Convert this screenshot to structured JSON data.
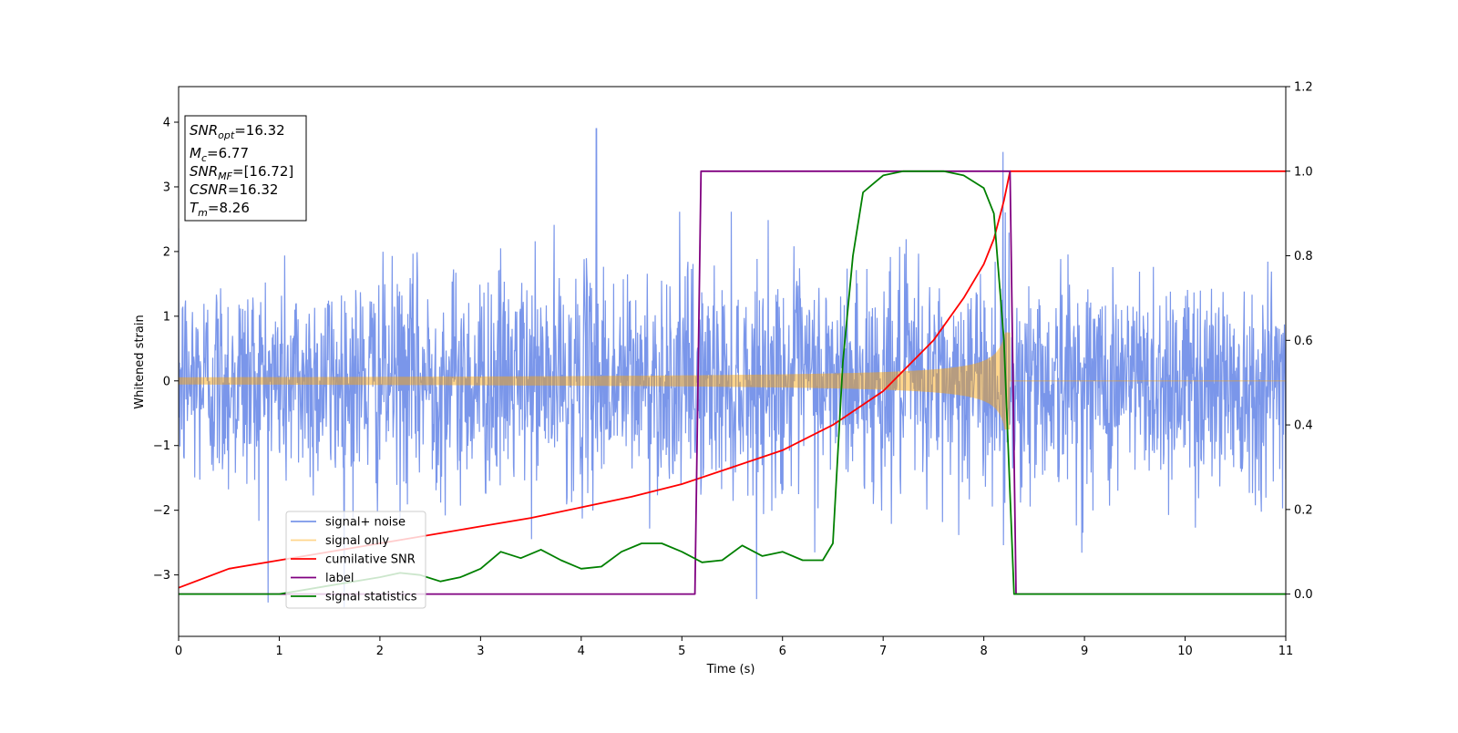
{
  "chart_data": {
    "type": "line",
    "xlabel": "Time (s)",
    "ylabel": "Whitened strain",
    "xlim": [
      0,
      11
    ],
    "ylim": [
      -3.95,
      4.55
    ],
    "y2lim": [
      -0.1,
      1.2
    ],
    "xticks": [
      "0",
      "1",
      "2",
      "3",
      "4",
      "5",
      "6",
      "7",
      "8",
      "9",
      "10",
      "11"
    ],
    "yticks": [
      "−3",
      "−2",
      "−1",
      "0",
      "1",
      "2",
      "3",
      "4"
    ],
    "y2ticks": [
      "0.0",
      "0.2",
      "0.4",
      "0.6",
      "0.8",
      "1.0",
      "1.2"
    ],
    "grid": false,
    "legend_position": "lower-left",
    "annotation": {
      "lines": [
        {
          "label": "SNR",
          "sub": "opt",
          "value": "=16.32"
        },
        {
          "label": "M",
          "sub": "c",
          "value": "=6.77"
        },
        {
          "label": "SNR",
          "sub": "MF",
          "value": "=[16.72]"
        },
        {
          "label": "CSNR",
          "sub": "",
          "value": "=16.32"
        },
        {
          "label": "T",
          "sub": "m",
          "value": "=8.26"
        }
      ]
    },
    "series": [
      {
        "name": "signal+ noise",
        "color": "#4169e1",
        "axis": "left",
        "kind": "noise",
        "std": 0.85,
        "duration_s": 11,
        "peak_at": 4.15,
        "peak_value": 4.18
      },
      {
        "name": "signal only",
        "color": "#ffa500",
        "axis": "left",
        "kind": "chirp",
        "amplitude_start": 0.05,
        "amplitude_end": 0.75,
        "merger_time": 8.26
      },
      {
        "name": "cumilative SNR",
        "color": "#ff0000",
        "axis": "right",
        "x": [
          0,
          0.5,
          1,
          1.5,
          2,
          2.5,
          3,
          3.5,
          4,
          4.5,
          5,
          5.5,
          6,
          6.5,
          7,
          7.5,
          7.8,
          8,
          8.1,
          8.2,
          8.26,
          8.26,
          11
        ],
        "y": [
          0.015,
          0.06,
          0.08,
          0.1,
          0.12,
          0.14,
          0.16,
          0.18,
          0.205,
          0.23,
          0.26,
          0.3,
          0.34,
          0.4,
          0.48,
          0.6,
          0.7,
          0.78,
          0.84,
          0.93,
          1.0,
          1.0,
          1.0
        ]
      },
      {
        "name": "label",
        "color": "#800080",
        "axis": "right",
        "x": [
          0,
          5.13,
          5.19,
          8.26,
          8.32,
          11
        ],
        "y": [
          0,
          0,
          1,
          1,
          0,
          0
        ]
      },
      {
        "name": "signal statistics",
        "color": "#008000",
        "axis": "right",
        "x": [
          0,
          1.0,
          1.5,
          2.0,
          2.2,
          2.4,
          2.6,
          2.8,
          3.0,
          3.2,
          3.4,
          3.6,
          3.8,
          4.0,
          4.2,
          4.4,
          4.6,
          4.8,
          5.0,
          5.2,
          5.4,
          5.6,
          5.8,
          6.0,
          6.2,
          6.4,
          6.5,
          6.6,
          6.7,
          6.8,
          6.9,
          7.0,
          7.2,
          7.4,
          7.6,
          7.8,
          8.0,
          8.1,
          8.2,
          8.3,
          8.4,
          11
        ],
        "y": [
          0.0,
          0.0,
          0.02,
          0.04,
          0.05,
          0.045,
          0.03,
          0.04,
          0.06,
          0.1,
          0.085,
          0.105,
          0.08,
          0.06,
          0.065,
          0.1,
          0.12,
          0.12,
          0.1,
          0.075,
          0.08,
          0.115,
          0.09,
          0.1,
          0.08,
          0.08,
          0.12,
          0.55,
          0.8,
          0.95,
          0.97,
          0.99,
          1.0,
          1.0,
          1.0,
          0.99,
          0.96,
          0.9,
          0.6,
          0.0,
          0.0,
          0.0
        ]
      }
    ]
  }
}
